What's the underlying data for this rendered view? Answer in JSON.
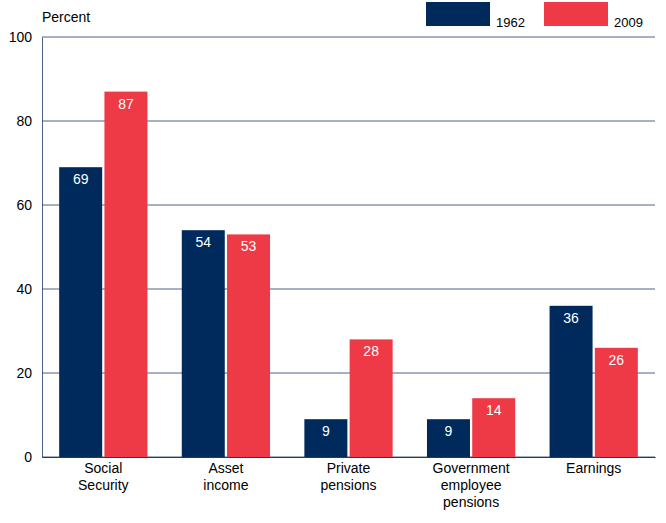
{
  "chart_data": {
    "type": "bar",
    "y_label": "Percent",
    "categories": [
      "Social Security",
      "Asset income",
      "Private pensions",
      "Government employee pensions",
      "Earnings"
    ],
    "series": [
      {
        "name": "1962",
        "color": "#002a5c",
        "values": [
          69,
          54,
          9,
          9,
          36
        ]
      },
      {
        "name": "2009",
        "color": "#ee3a46",
        "values": [
          87,
          53,
          28,
          14,
          26
        ]
      }
    ],
    "ylim": [
      0,
      100
    ],
    "yticks": [
      0,
      20,
      40,
      60,
      80,
      100
    ],
    "grid": true,
    "legend": "top-right",
    "data_labels": true
  }
}
